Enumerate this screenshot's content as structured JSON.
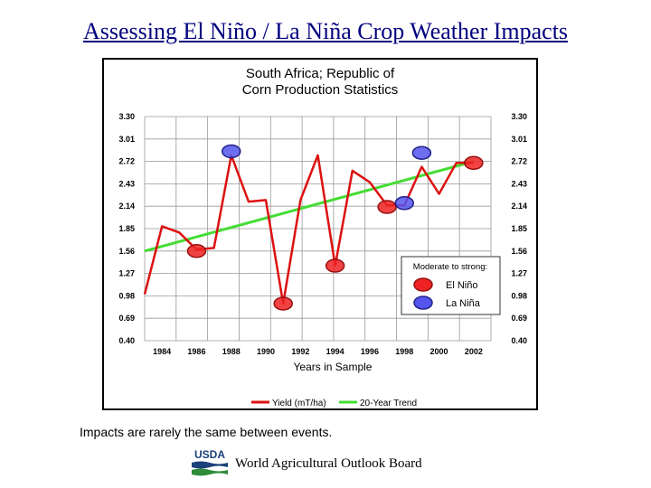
{
  "slide": {
    "title": "Assessing El Niño / La Niña Crop Weather Impacts",
    "caption": "Impacts are rarely the same between events.",
    "footer": "World Agricultural Outlook Board",
    "logo_text": "USDA"
  },
  "colors": {
    "title": "#000080",
    "yield_line": "#dd1111",
    "trend_line": "#44dd33",
    "el_nino": "#ee2222",
    "la_nina": "#5555ee",
    "grid": "#999999"
  },
  "chart_data": {
    "type": "line",
    "title": "South Africa; Republic of",
    "subtitle": "Corn Production Statistics",
    "xlabel": "Years in Sample",
    "ylabel": "",
    "x_ticks": [
      "1984",
      "1986",
      "1988",
      "1990",
      "1992",
      "1994",
      "1996",
      "1998",
      "2000",
      "2002"
    ],
    "y_ticks": [
      "0.40",
      "0.69",
      "0.98",
      "1.27",
      "1.56",
      "1.85",
      "2.14",
      "2.43",
      "2.72",
      "3.01",
      "3.30"
    ],
    "xlim": [
      1983,
      2003
    ],
    "ylim": [
      0.4,
      3.3
    ],
    "grid": true,
    "series": [
      {
        "name": "Yield (mT/ha)",
        "x": [
          1983,
          1984,
          1985,
          1986,
          1987,
          1988,
          1989,
          1990,
          1991,
          1992,
          1993,
          1994,
          1995,
          1996,
          1997,
          1998,
          1999,
          2000,
          2001,
          2002
        ],
        "values": [
          1.0,
          1.88,
          1.8,
          1.58,
          1.6,
          2.8,
          2.2,
          2.22,
          0.88,
          2.22,
          2.8,
          1.37,
          2.6,
          2.45,
          2.15,
          2.15,
          2.65,
          2.3,
          2.7,
          2.7
        ]
      },
      {
        "name": "20-Year Trend",
        "x": [
          1983,
          2002
        ],
        "values": [
          1.56,
          2.72
        ]
      }
    ],
    "markers": [
      {
        "type": "El Niño",
        "x": 1986,
        "y": 1.56
      },
      {
        "type": "La Niña",
        "x": 1988,
        "y": 2.85
      },
      {
        "type": "El Niño",
        "x": 1991,
        "y": 0.88
      },
      {
        "type": "El Niño",
        "x": 1994,
        "y": 1.37
      },
      {
        "type": "El Niño",
        "x": 1997,
        "y": 2.13
      },
      {
        "type": "La Niña",
        "x": 1998,
        "y": 2.18
      },
      {
        "type": "La Niña",
        "x": 1999,
        "y": 2.83
      },
      {
        "type": "El Niño",
        "x": 2002,
        "y": 2.7
      }
    ],
    "inset_legend": {
      "heading": "Moderate to strong:",
      "el_nino": "El Niño",
      "la_nina": "La Niña"
    },
    "legend_placement": "bottom"
  }
}
